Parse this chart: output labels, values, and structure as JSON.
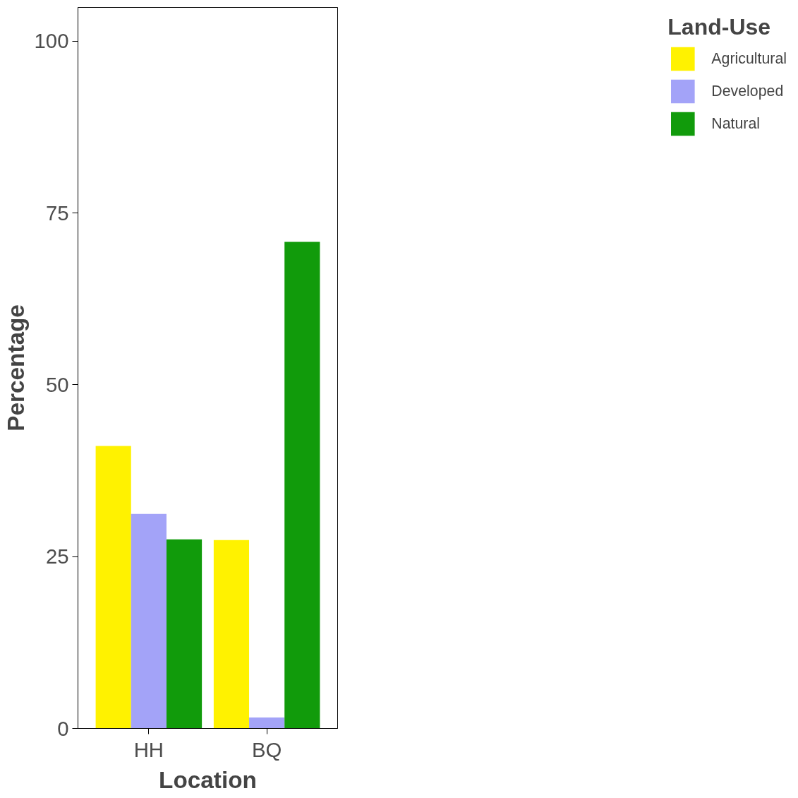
{
  "chart_data": {
    "type": "bar",
    "xlabel": "Location",
    "ylabel": "Percentage",
    "legend_title": "Land-Use",
    "categories": [
      "HH",
      "BQ"
    ],
    "series": [
      {
        "name": "Agricultural",
        "color": "#fff200",
        "values": [
          41.1,
          27.4
        ]
      },
      {
        "name": "Developed",
        "color": "#a3a3f8",
        "values": [
          31.2,
          1.6
        ]
      },
      {
        "name": "Natural",
        "color": "#119b0b",
        "values": [
          27.5,
          70.8
        ]
      }
    ],
    "ylim": [
      0,
      104.9
    ],
    "yticks": [
      0,
      25,
      50,
      75,
      100
    ],
    "grid": false,
    "legend": "right"
  }
}
